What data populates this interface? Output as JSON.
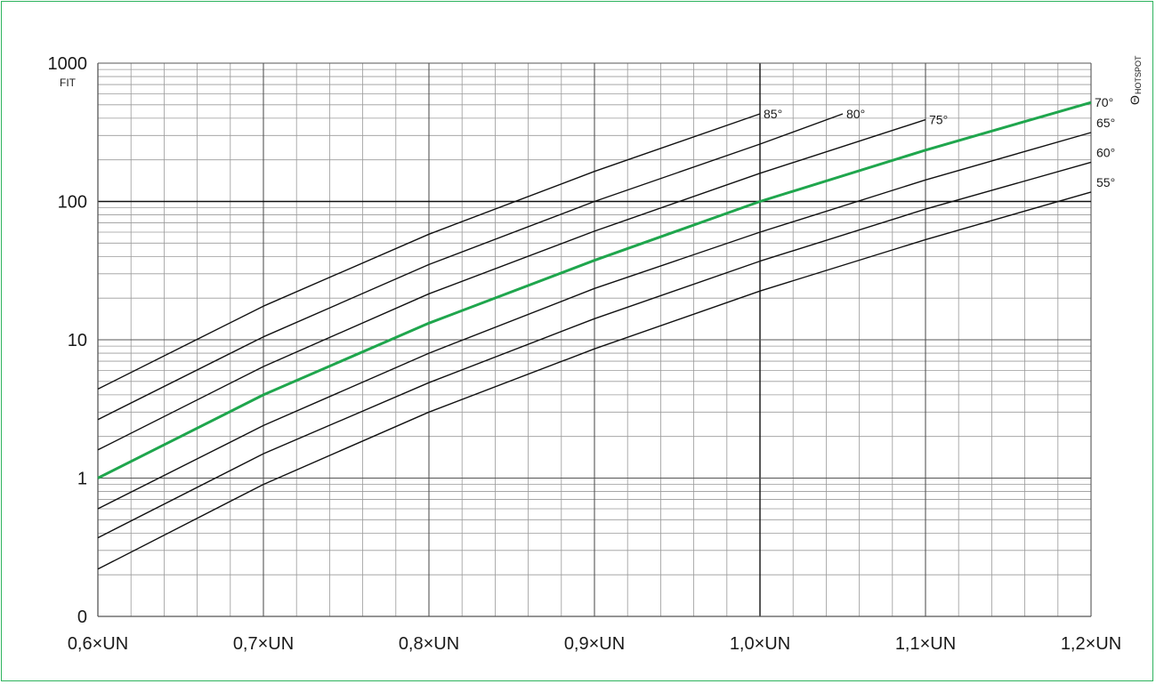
{
  "chart_data": {
    "type": "line",
    "title": "",
    "xlabel": "",
    "ylabel": "FIT",
    "y_scale": "log",
    "ylim": [
      0.1,
      1000
    ],
    "xlim": [
      0.6,
      1.2
    ],
    "x_ticks": [
      {
        "value": 0.6,
        "label": "0,6×UN"
      },
      {
        "value": 0.7,
        "label": "0,7×UN"
      },
      {
        "value": 0.8,
        "label": "0,8×UN"
      },
      {
        "value": 0.9,
        "label": "0,9×UN"
      },
      {
        "value": 1.0,
        "label": "1,0×UN"
      },
      {
        "value": 1.1,
        "label": "1,1×UN"
      },
      {
        "value": 1.2,
        "label": "1,2×UN"
      }
    ],
    "y_ticks": [
      {
        "value": 0.1,
        "label": "0"
      },
      {
        "value": 1,
        "label": "1"
      },
      {
        "value": 10,
        "label": "10"
      },
      {
        "value": 100,
        "label": "100"
      },
      {
        "value": 1000,
        "label": "1000"
      }
    ],
    "y_unit_label": "FIT",
    "legend_title": "ΘHOTSPOT",
    "legend_title_main": "Θ",
    "legend_title_sub": "HOTSPOT",
    "highlight_color": "#1fa64d",
    "line_color": "#111111",
    "grid": true,
    "series": [
      {
        "name": "85°",
        "label_pos": "end-right",
        "highlight": false,
        "points": [
          [
            0.6,
            4.4
          ],
          [
            0.7,
            17.5
          ],
          [
            0.8,
            58
          ],
          [
            0.9,
            165
          ],
          [
            1.0,
            430
          ]
        ]
      },
      {
        "name": "80°",
        "label_pos": "end-right",
        "highlight": false,
        "points": [
          [
            0.6,
            2.65
          ],
          [
            0.7,
            10.5
          ],
          [
            0.8,
            35
          ],
          [
            0.9,
            100
          ],
          [
            1.0,
            260
          ],
          [
            1.05,
            430
          ]
        ]
      },
      {
        "name": "75°",
        "label_pos": "end-right",
        "highlight": false,
        "points": [
          [
            0.6,
            1.6
          ],
          [
            0.7,
            6.4
          ],
          [
            0.8,
            21.5
          ],
          [
            0.9,
            61
          ],
          [
            1.0,
            160
          ],
          [
            1.1,
            390
          ]
        ]
      },
      {
        "name": "70°",
        "label_pos": "end-right",
        "highlight": true,
        "points": [
          [
            0.6,
            1.0
          ],
          [
            0.7,
            4.0
          ],
          [
            0.8,
            13.2
          ],
          [
            0.9,
            37.5
          ],
          [
            1.0,
            100
          ],
          [
            1.1,
            235
          ],
          [
            1.2,
            520
          ]
        ]
      },
      {
        "name": "65°",
        "label_pos": "end-above",
        "highlight": false,
        "points": [
          [
            0.6,
            0.6
          ],
          [
            0.7,
            2.4
          ],
          [
            0.8,
            8.0
          ],
          [
            0.9,
            23.5
          ],
          [
            1.0,
            60
          ],
          [
            1.1,
            143
          ],
          [
            1.2,
            315
          ]
        ]
      },
      {
        "name": "60°",
        "label_pos": "end-above",
        "highlight": false,
        "points": [
          [
            0.6,
            0.37
          ],
          [
            0.7,
            1.5
          ],
          [
            0.8,
            4.9
          ],
          [
            0.9,
            14.2
          ],
          [
            1.0,
            37
          ],
          [
            1.1,
            88
          ],
          [
            1.2,
            192
          ]
        ]
      },
      {
        "name": "55°",
        "label_pos": "end-above",
        "highlight": false,
        "points": [
          [
            0.6,
            0.22
          ],
          [
            0.7,
            0.9
          ],
          [
            0.8,
            3.0
          ],
          [
            0.9,
            8.6
          ],
          [
            1.0,
            22.5
          ],
          [
            1.1,
            53
          ],
          [
            1.2,
            117
          ]
        ]
      }
    ]
  }
}
